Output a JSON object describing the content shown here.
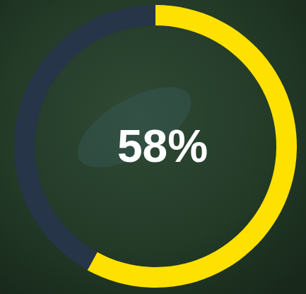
{
  "chart_data": {
    "type": "donut",
    "values": [
      58,
      42
    ],
    "value_labels": [
      "58%",
      null
    ],
    "colors": [
      "#ffe100",
      "#263548"
    ],
    "data_labels": true
  }
}
